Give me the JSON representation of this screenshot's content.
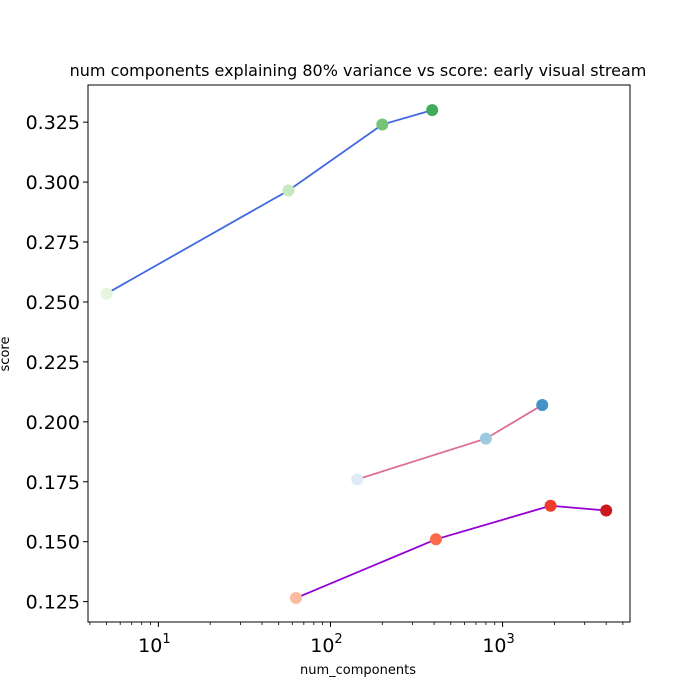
{
  "chart_data": {
    "type": "scatter",
    "title": "num components explaining 80% variance vs score: early visual stream",
    "xlabel": "num_components",
    "ylabel": "score",
    "xscale": "log",
    "xlim": [
      3.9,
      5500
    ],
    "ylim": [
      0.1165,
      0.3405
    ],
    "x_ticks": [
      {
        "base": "10",
        "exp": "1",
        "value": 10
      },
      {
        "base": "10",
        "exp": "2",
        "value": 100
      },
      {
        "base": "10",
        "exp": "3",
        "value": 1000
      }
    ],
    "y_ticks": [
      0.125,
      0.15,
      0.175,
      0.2,
      0.225,
      0.25,
      0.275,
      0.3,
      0.325
    ],
    "y_tick_labels": [
      "0.125",
      "0.150",
      "0.175",
      "0.200",
      "0.225",
      "0.250",
      "0.275",
      "0.300",
      "0.325"
    ],
    "grid": false,
    "legend": "none",
    "series": [
      {
        "line_color": "#4169e1",
        "x": [
          5,
          57,
          200,
          390
        ],
        "y": [
          0.2535,
          0.2965,
          0.324,
          0.33
        ],
        "marker_colors": [
          "#e5f5e0",
          "#c7e9c0",
          "#74c476",
          "#41ab5d"
        ]
      },
      {
        "line_color": "#db7093",
        "x": [
          143,
          800,
          1700
        ],
        "y": [
          0.176,
          0.193,
          0.207
        ],
        "marker_colors": [
          "#deebf7",
          "#9ecae1",
          "#4292c6"
        ]
      },
      {
        "line_color": "#9400d3",
        "x": [
          63,
          410,
          1900,
          4000
        ],
        "y": [
          0.1265,
          0.151,
          0.165,
          0.163
        ],
        "marker_colors": [
          "#fcbba1",
          "#fb6a4a",
          "#ef3b2c",
          "#cb181d"
        ]
      }
    ]
  }
}
